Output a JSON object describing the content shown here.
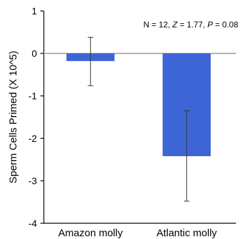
{
  "chart_data": {
    "type": "bar",
    "categories": [
      "Amazon molly",
      "Atlantic molly"
    ],
    "values": [
      -0.18,
      -2.42
    ],
    "error_upper": [
      0.38,
      -1.35
    ],
    "error_lower": [
      -0.76,
      -3.48
    ],
    "ylabel": "Sperm Cells Primed (X 10^5)",
    "ylim": [
      -4,
      1
    ],
    "yticks": [
      "1",
      "0",
      "-1",
      "-2",
      "-3",
      "-4"
    ],
    "annotation": {
      "prefix": "N = 12, ",
      "z_label": "Z",
      "z_value": " = 1.77, ",
      "p_label": "P",
      "p_value": " = 0.08"
    },
    "bar_color": "#3d65d6",
    "zero_line_color": "#999999",
    "grid": false
  }
}
